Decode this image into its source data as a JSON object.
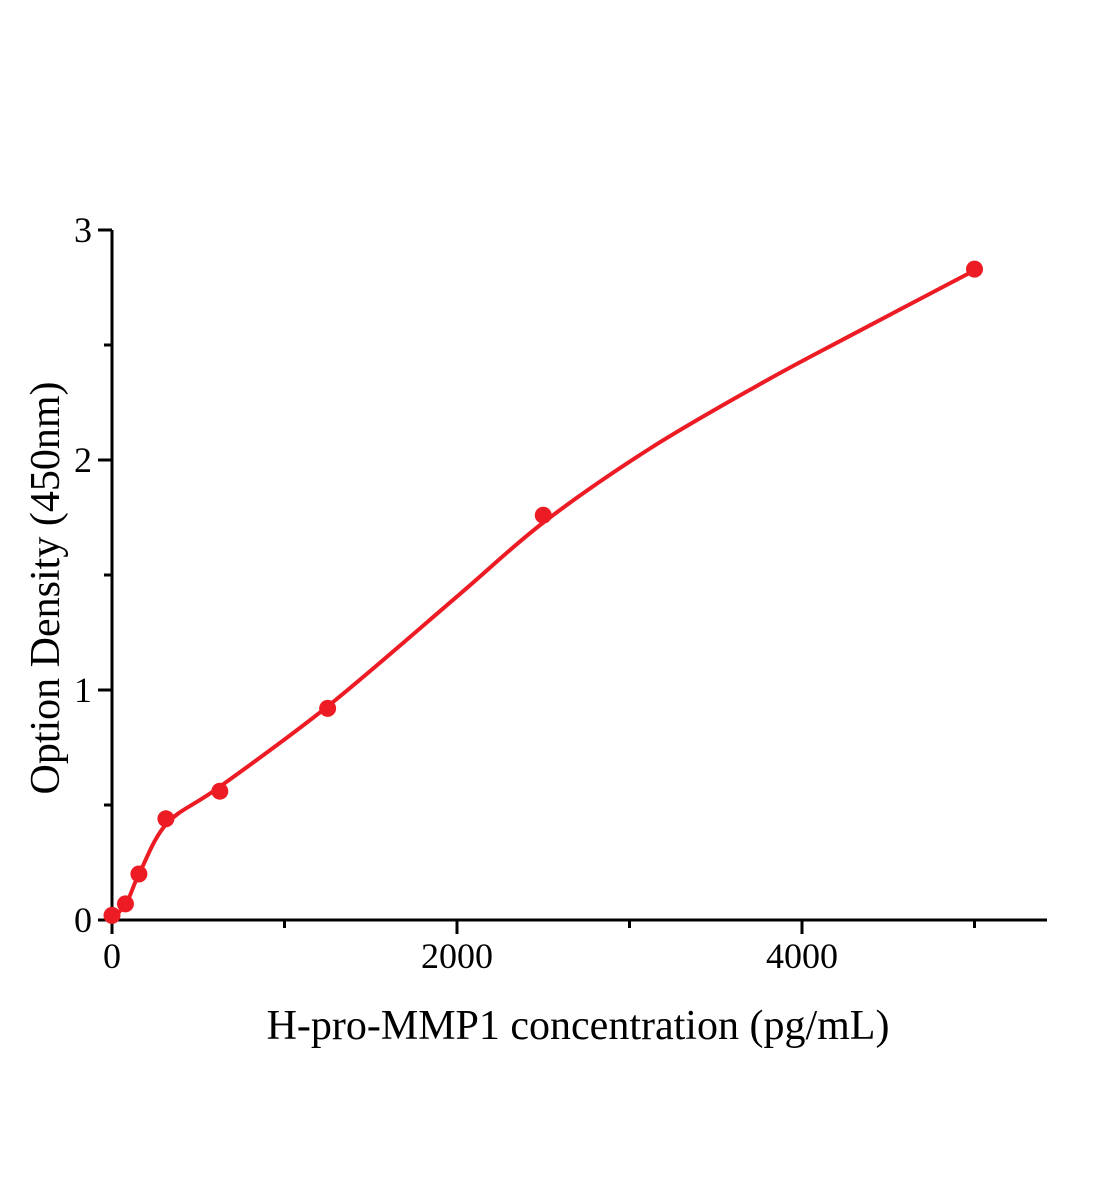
{
  "chart_data": {
    "type": "scatter",
    "title": "",
    "xlabel": "H-pro-MMP1  concentration (pg/mL)",
    "ylabel": "Option Density (450nm)",
    "xlim": [
      0,
      5420
    ],
    "ylim": [
      0,
      3
    ],
    "x_major_ticks": [
      0,
      2000,
      4000
    ],
    "x_minor_ticks": [
      1000,
      3000,
      5000
    ],
    "y_major_ticks": [
      0,
      1,
      2,
      3
    ],
    "y_minor_ticks": [
      0.5,
      1.5,
      2.5
    ],
    "grid": false,
    "legend": false,
    "background_color": "#ffffff",
    "axis_color": "#000000",
    "accent_color": "#ed1c24",
    "series": [
      {
        "name": "standard-points",
        "marker": "circle",
        "marker_color": "#ed1c24",
        "points": [
          {
            "x": 0,
            "y": 0.02
          },
          {
            "x": 78,
            "y": 0.07
          },
          {
            "x": 156,
            "y": 0.2
          },
          {
            "x": 312.5,
            "y": 0.44
          },
          {
            "x": 625,
            "y": 0.56
          },
          {
            "x": 1250,
            "y": 0.92
          },
          {
            "x": 2500,
            "y": 1.76
          },
          {
            "x": 5000,
            "y": 2.83
          }
        ]
      }
    ],
    "fit_curve": {
      "name": "fitted-standard-curve",
      "color": "#ed1c24",
      "points": [
        [
          0,
          0.0
        ],
        [
          87,
          0.08
        ],
        [
          157,
          0.2
        ],
        [
          319,
          0.42
        ],
        [
          626,
          0.58
        ],
        [
          1252,
          0.93
        ],
        [
          2006,
          1.41
        ],
        [
          2504,
          1.73
        ],
        [
          3119,
          2.05
        ],
        [
          3757,
          2.33
        ],
        [
          4278,
          2.54
        ],
        [
          5014,
          2.83
        ]
      ]
    }
  }
}
